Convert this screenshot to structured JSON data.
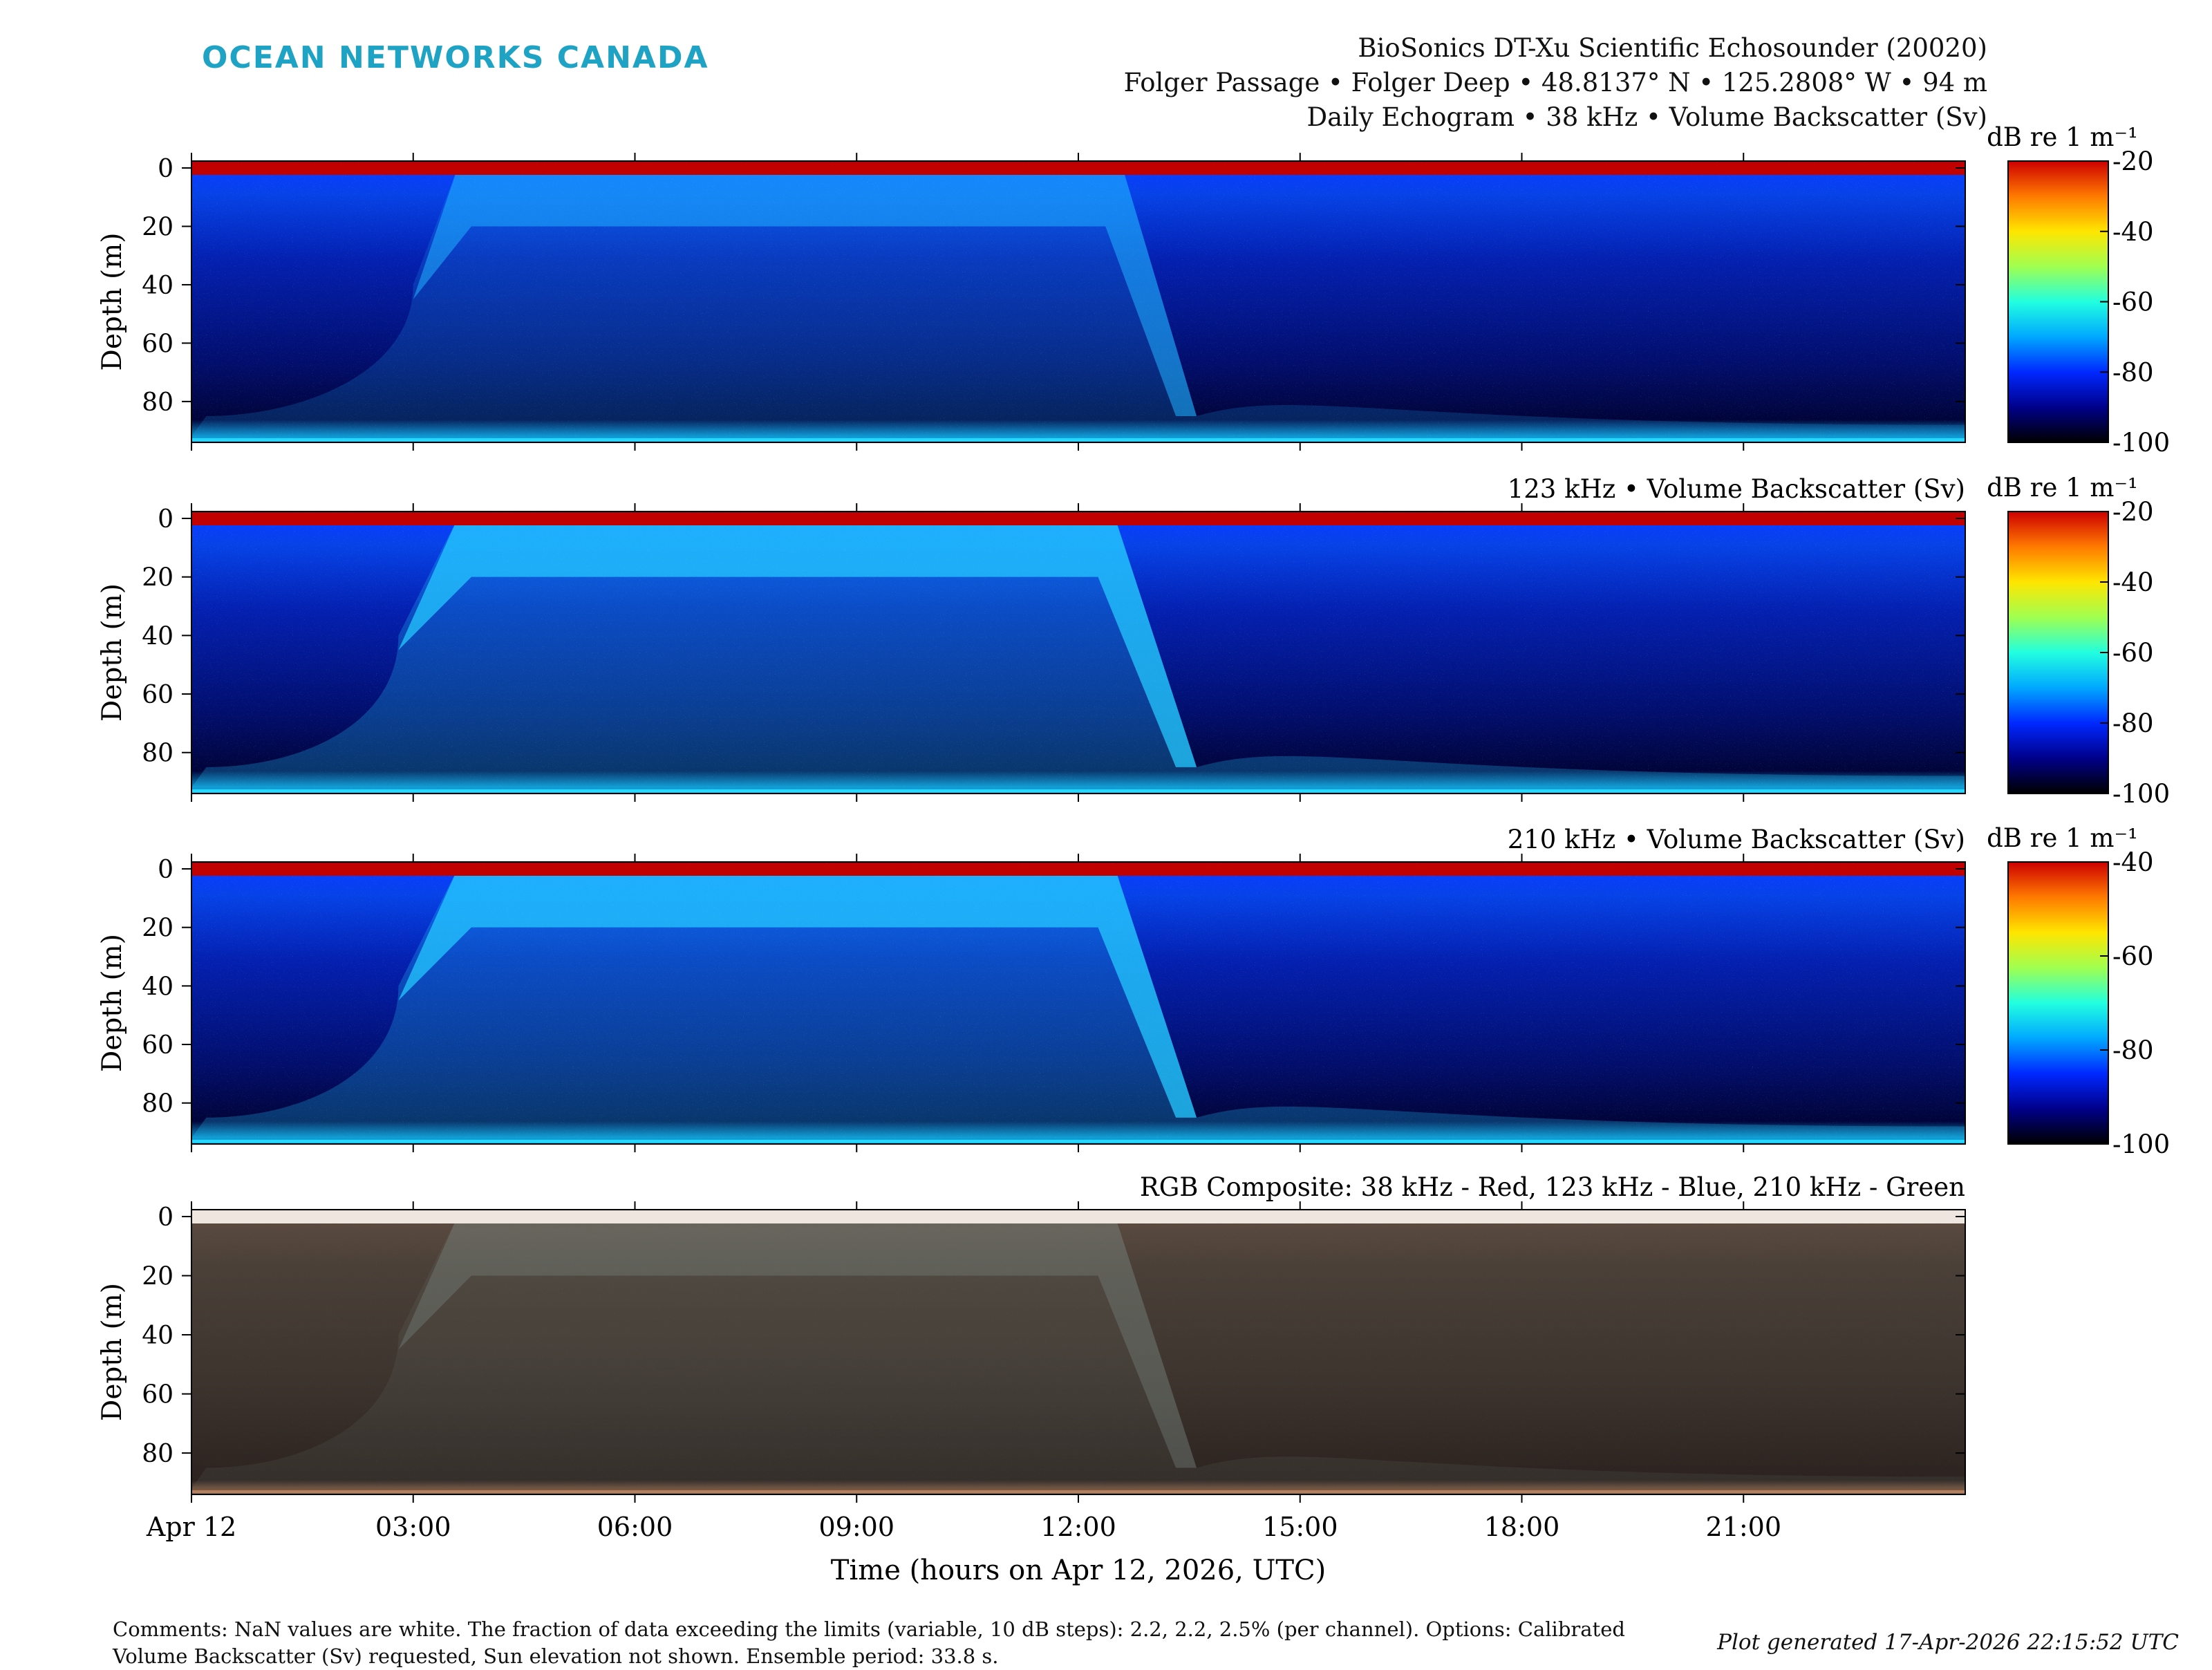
{
  "header": {
    "logo": "OCEAN NETWORKS CANADA",
    "line1": "BioSonics DT-Xu Scientific Echosounder (20020)",
    "line2": "Folger Passage • Folger Deep • 48.8137° N • 125.2808° W • 94 m",
    "line3": "Daily Echogram • 38 kHz • Volume Backscatter (Sv)"
  },
  "footer": {
    "comments_line1": "Comments: NaN values are white. The fraction of data exceeding the limits (variable, 10 dB steps): 2.2, 2.2, 2.5% (per channel). Options: Calibrated",
    "comments_line2": "Volume Backscatter (Sv) requested, Sun elevation not shown. Ensemble period: 33.8 s.",
    "generated": "Plot generated 17-Apr-2026 22:15:52 UTC"
  },
  "colors": {
    "logo": "#1fa3c4",
    "colormap": "jet-like, black at minimum"
  },
  "chart_data": [
    {
      "type": "heatmap",
      "title": "Daily Echogram • 38 kHz • Volume Backscatter (Sv)",
      "ylabel": "Depth (m)",
      "yticks": [
        0,
        20,
        40,
        60,
        80
      ],
      "ylim": [
        0,
        94
      ],
      "y_reversed": true,
      "x": [
        "Apr 12",
        "03:00",
        "06:00",
        "09:00",
        "12:00",
        "15:00",
        "18:00",
        "21:00"
      ],
      "xlim_hours": [
        0,
        24
      ],
      "colorbar": {
        "label": "dB re 1 m⁻¹",
        "ticks": [
          -20,
          -40,
          -60,
          -80,
          -100
        ],
        "range": [
          -100,
          -20
        ]
      },
      "features": {
        "migration_ascent_hours": [
          3.0,
          3.6
        ],
        "migration_descent_hours": [
          12.6,
          13.6
        ],
        "surface_layer_m": [
          0,
          20
        ]
      }
    },
    {
      "type": "heatmap",
      "title": "123 kHz • Volume Backscatter (Sv)",
      "ylabel": "Depth (m)",
      "yticks": [
        0,
        20,
        40,
        60,
        80
      ],
      "ylim": [
        0,
        94
      ],
      "y_reversed": true,
      "colorbar": {
        "label": "dB re 1 m⁻¹",
        "ticks": [
          -20,
          -40,
          -60,
          -80,
          -100
        ],
        "range": [
          -100,
          -20
        ]
      },
      "features": {
        "migration_ascent_hours": [
          2.8,
          3.6
        ],
        "migration_descent_hours": [
          12.5,
          13.6
        ],
        "surface_layer_m": [
          0,
          20
        ]
      }
    },
    {
      "type": "heatmap",
      "title": "210 kHz • Volume Backscatter (Sv)",
      "ylabel": "Depth (m)",
      "yticks": [
        0,
        20,
        40,
        60,
        80
      ],
      "ylim": [
        0,
        94
      ],
      "y_reversed": true,
      "colorbar": {
        "label": "dB re 1 m⁻¹",
        "ticks": [
          -40,
          -60,
          -80,
          -100
        ],
        "range": [
          -100,
          -40
        ]
      },
      "features": {
        "migration_ascent_hours": [
          2.8,
          3.6
        ],
        "migration_descent_hours": [
          12.5,
          13.6
        ],
        "surface_layer_m": [
          0,
          20
        ]
      }
    },
    {
      "type": "heatmap",
      "title": "RGB Composite: 38 kHz - Red, 123 kHz - Blue, 210 kHz - Green",
      "ylabel": "Depth (m)",
      "yticks": [
        0,
        20,
        40,
        60,
        80
      ],
      "ylim": [
        0,
        94
      ],
      "y_reversed": true,
      "xlabel": "Time (hours on Apr 12, 2026, UTC)",
      "xticks": [
        "Apr 12",
        "03:00",
        "06:00",
        "09:00",
        "12:00",
        "15:00",
        "18:00",
        "21:00"
      ]
    }
  ]
}
